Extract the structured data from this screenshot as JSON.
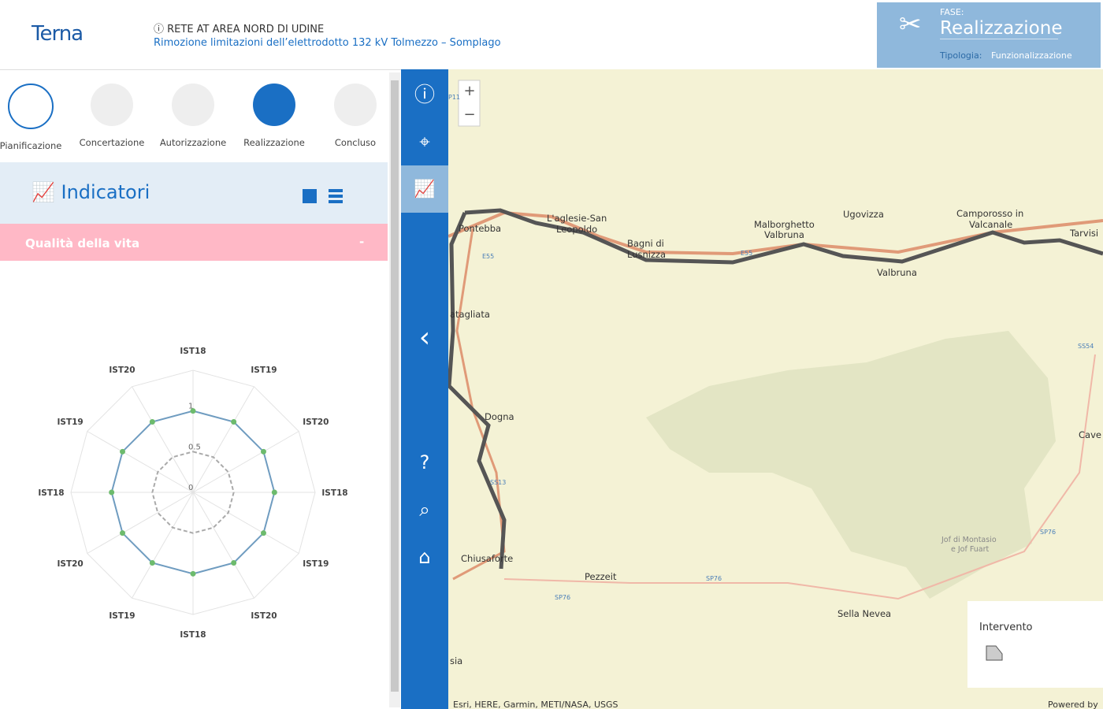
{
  "header": {
    "logo": "Terna",
    "title": "RETE AT AREA NORD DI UDINE",
    "subtitle": "Rimozione limitazioni dell’elettrodotto 132 kV Tolmezzo – Somplago",
    "phase_label": "FASE:",
    "phase": "Realizzazione",
    "type_label": "Tipologia:",
    "type": "Funzionalizzazione"
  },
  "phases": [
    "Pianificazione",
    "Concertazione",
    "Autorizzazione",
    "Realizzazione",
    "Concluso"
  ],
  "panel": {
    "title": "Indicatori",
    "section": "Qualità della vita",
    "collapse": "-"
  },
  "chart_data": {
    "type": "radar",
    "categories": [
      "IST18",
      "IST19",
      "IST20",
      "IST18",
      "IST19",
      "IST20",
      "IST18",
      "IST19",
      "IST20",
      "IST18",
      "IST19",
      "IST20"
    ],
    "values": [
      1,
      1,
      1,
      1,
      1,
      1,
      1,
      1,
      1,
      1,
      1,
      1
    ],
    "ylim": [
      0,
      1.5
    ],
    "yticks": [
      0,
      0.5,
      1
    ],
    "color": "#6f9cc0",
    "marker_color": "#6dbb6d"
  },
  "map": {
    "zoom_in": "+",
    "zoom_out": "−",
    "labels": [
      "Pontebba",
      "L'aglesie-San",
      "Leopoldo",
      "Bagni di",
      "Lusnizza",
      "Malborghetto",
      "Valbruna",
      "Ugovizza",
      "Camporosso in",
      "Valcanale",
      "Tarvisi",
      "Valbruna",
      "atagliata",
      "Dogna",
      "Chiusaforte",
      "Pezzeit",
      "Sella Nevea",
      "Cave del P",
      "Jof di Montasio",
      "e Jof Fuart",
      "sia",
      "E55",
      "E55",
      "SS13",
      "SP76",
      "SP76",
      "SS54",
      "SP76",
      "P11"
    ],
    "attribution": "Esri, HERE, Garmin, METI/NASA, USGS",
    "powered": "Powered by"
  },
  "legend": {
    "title": "Intervento"
  }
}
